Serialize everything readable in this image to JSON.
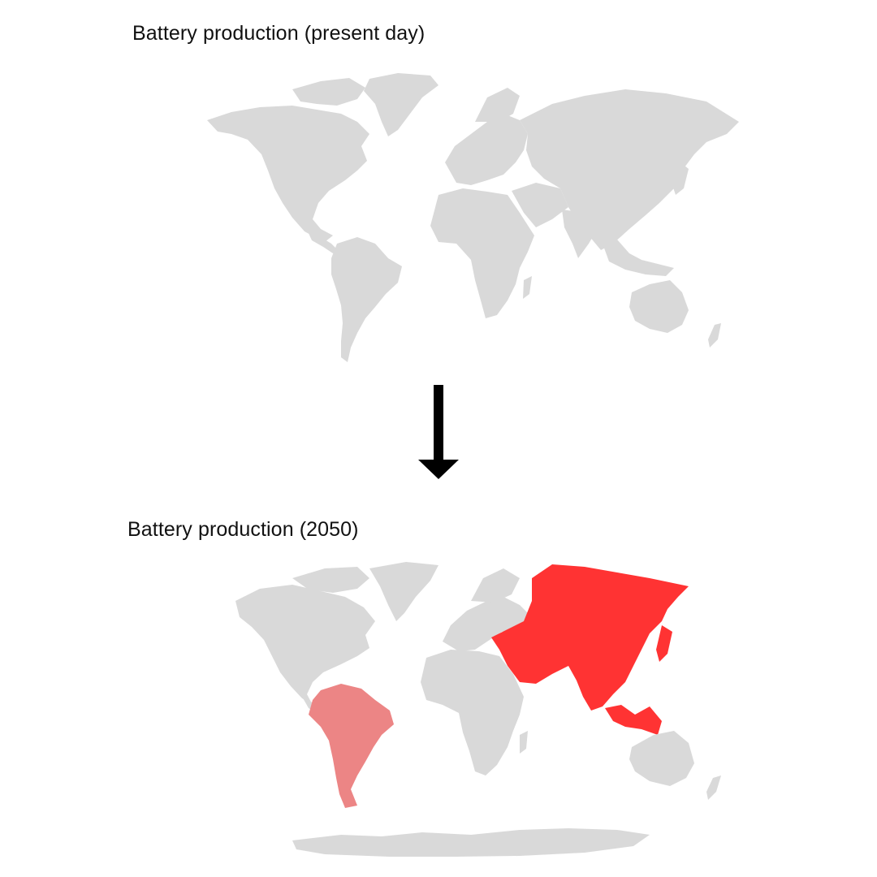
{
  "maps": {
    "present": {
      "title": "Battery production (present day)",
      "highlighted_regions": []
    },
    "future": {
      "title": "Battery production (2050)",
      "highlighted_regions": [
        {
          "region": "Asia",
          "level": "high"
        },
        {
          "region": "South America",
          "level": "medium"
        }
      ]
    },
    "transition": "arrow-down-icon"
  },
  "colors": {
    "land_default": "#d9d9d9",
    "high": "#ff3333",
    "medium": "#ec8585",
    "arrow": "#000000",
    "background": "#ffffff"
  }
}
